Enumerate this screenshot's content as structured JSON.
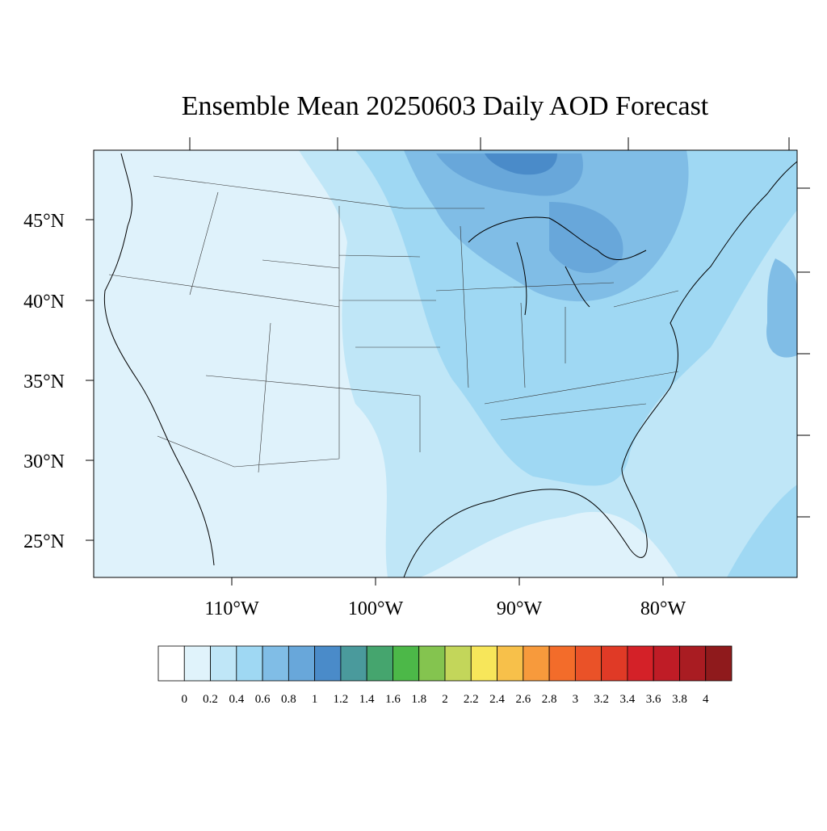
{
  "title": "Ensemble Mean 20250603 Daily AOD Forecast",
  "lat_labels": [
    "45°N",
    "40°N",
    "35°N",
    "30°N",
    "25°N"
  ],
  "lon_labels": [
    "110°W",
    "100°W",
    "90°W",
    "80°W"
  ],
  "colorbar": {
    "levels": [
      0,
      0.2,
      0.4,
      0.6,
      0.8,
      1,
      1.2,
      1.4,
      1.6,
      1.8,
      2,
      2.2,
      2.4,
      2.6,
      2.8,
      3,
      3.2,
      3.4,
      3.6,
      3.8,
      4
    ],
    "colors": [
      "#ffffff",
      "#e0f3fb",
      "#bfe6f7",
      "#9fd8f3",
      "#80bde6",
      "#68a7da",
      "#4a8bc9",
      "#4a9a9c",
      "#45a56e",
      "#4cb848",
      "#84c44f",
      "#c3d65a",
      "#f7e65a",
      "#f7c04a",
      "#f79a3c",
      "#f36c2a",
      "#ea5228",
      "#e03a26",
      "#d42128",
      "#bf1c26",
      "#a91c22",
      "#8f1a1c"
    ]
  }
}
